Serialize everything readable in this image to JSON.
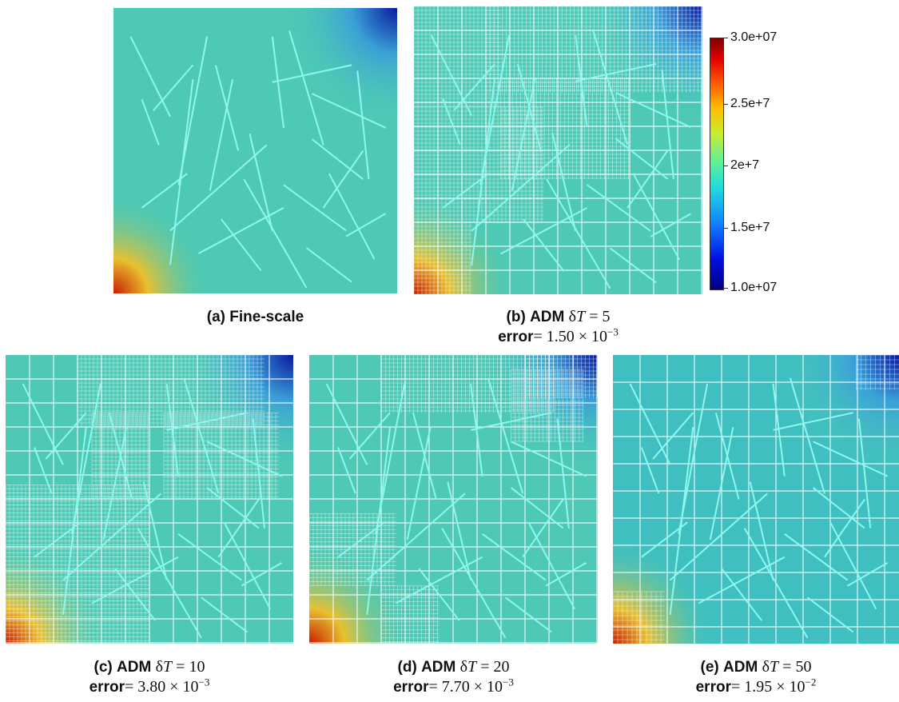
{
  "panels": [
    {
      "letter": "(a)",
      "name": "Fine-scale",
      "method": "",
      "dT": "",
      "error": ""
    },
    {
      "letter": "(b)",
      "name": "",
      "method": "ADM",
      "dT": "5",
      "error": "1.50 × 10",
      "error_exp": "−3"
    },
    {
      "letter": "(c)",
      "name": "",
      "method": "ADM",
      "dT": "10",
      "error": "3.80 × 10",
      "error_exp": "−3"
    },
    {
      "letter": "(d)",
      "name": "",
      "method": "ADM",
      "dT": "20",
      "error": "7.70 × 10",
      "error_exp": "−3"
    },
    {
      "letter": "(e)",
      "name": "",
      "method": "ADM",
      "dT": "50",
      "error": "1.95 × 10",
      "error_exp": "−2"
    }
  ],
  "error_label": "error",
  "delta_symbol": "δ",
  "T_symbol": "T",
  "equals": " = ",
  "colorbar": {
    "ticks": [
      "3.0e+07",
      "2.5e+7",
      "2e+7",
      "1.5e+7",
      "1.0e+07"
    ],
    "colormap": "jet",
    "min": "1.0e+07",
    "max": "3.0e+07"
  },
  "colors": {
    "field": "#4dc9b5",
    "fractures": "#8ff7ee",
    "grid": "#ffffff",
    "hot_corner": "#c81e00",
    "cold_corner": "#0a1aa0"
  }
}
